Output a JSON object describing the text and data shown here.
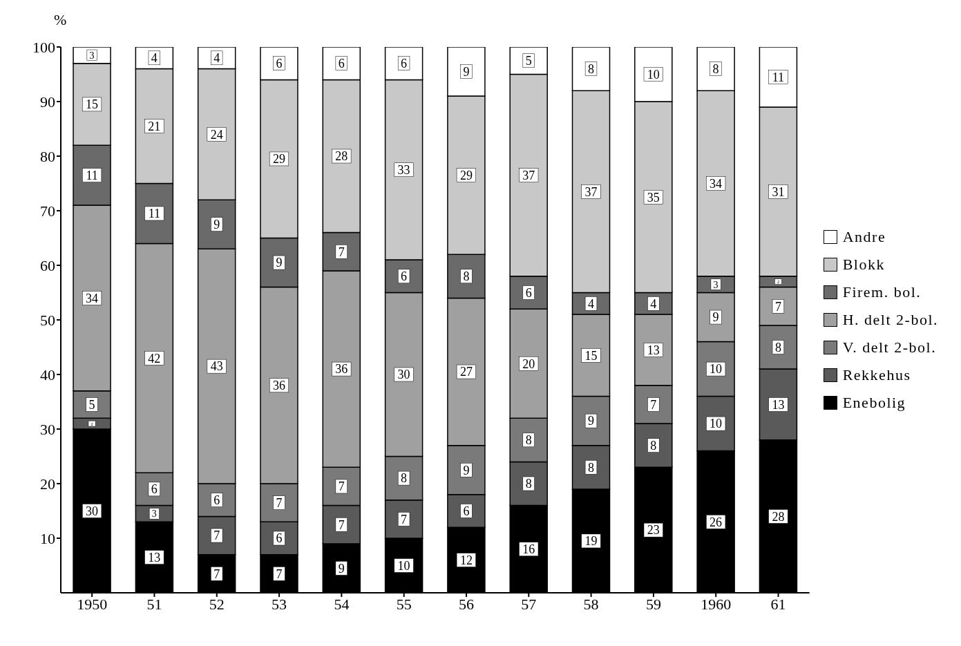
{
  "chart_data": {
    "type": "bar",
    "stacked": true,
    "ylabel": "%",
    "categories": [
      "1950",
      "51",
      "52",
      "53",
      "54",
      "55",
      "56",
      "57",
      "58",
      "59",
      "1960",
      "61"
    ],
    "series": [
      {
        "name": "Enebolig",
        "color": "#000000",
        "values": [
          30,
          13,
          7,
          7,
          9,
          10,
          12,
          16,
          19,
          23,
          26,
          28
        ]
      },
      {
        "name": "Rekkehus",
        "color": "#5a5a5a",
        "values": [
          2,
          3,
          7,
          6,
          7,
          7,
          6,
          8,
          8,
          8,
          10,
          13
        ]
      },
      {
        "name": "V. delt 2-bol.",
        "color": "#7a7a7a",
        "values": [
          5,
          6,
          6,
          7,
          7,
          8,
          9,
          8,
          9,
          7,
          10,
          8
        ]
      },
      {
        "name": "H. delt 2-bol.",
        "color": "#a0a0a0",
        "values": [
          34,
          42,
          43,
          36,
          36,
          30,
          27,
          20,
          15,
          13,
          9,
          7
        ]
      },
      {
        "name": "Firem. bol.",
        "color": "#6a6a6a",
        "values": [
          11,
          11,
          9,
          9,
          7,
          6,
          8,
          6,
          4,
          4,
          3,
          2
        ]
      },
      {
        "name": "Blokk",
        "color": "#c8c8c8",
        "values": [
          15,
          21,
          24,
          29,
          28,
          33,
          29,
          37,
          37,
          35,
          34,
          31
        ]
      },
      {
        "name": "Andre",
        "color": "#ffffff",
        "values": [
          3,
          4,
          4,
          6,
          6,
          6,
          9,
          5,
          8,
          10,
          8,
          11
        ]
      }
    ],
    "ylim": [
      0,
      100
    ],
    "yticks": [
      10,
      20,
      30,
      40,
      50,
      60,
      70,
      80,
      90,
      100
    ],
    "grid": false,
    "legend": "right",
    "data_labels": true
  }
}
